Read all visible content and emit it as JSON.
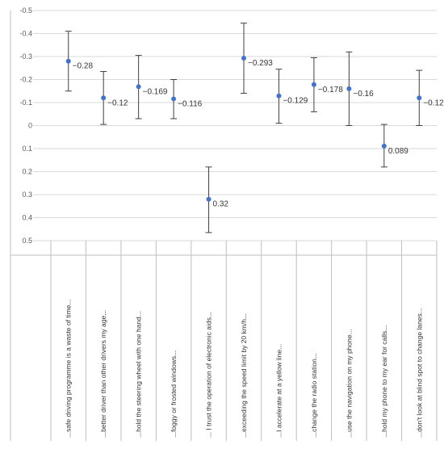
{
  "chart_data": {
    "type": "scatter",
    "y_reversed": true,
    "ylim": [
      -0.5,
      0.5
    ],
    "y_ticks": [
      {
        "value": -0.5,
        "label": "-0.5"
      },
      {
        "value": -0.4,
        "label": "-0.4"
      },
      {
        "value": -0.3,
        "label": "-0.3"
      },
      {
        "value": -0.2,
        "label": "-0.2"
      },
      {
        "value": -0.1,
        "label": "-0.1"
      },
      {
        "value": 0,
        "label": "0"
      },
      {
        "value": 0.1,
        "label": "0.1"
      },
      {
        "value": 0.2,
        "label": "0.2"
      },
      {
        "value": 0.3,
        "label": "0.3"
      },
      {
        "value": 0.4,
        "label": "0.4"
      },
      {
        "value": 0.5,
        "label": "0.5"
      }
    ],
    "categories": [
      "...safe driving programme is a waste of time...",
      "...better driver than other drivers my age...",
      "...hold the steering wheel with one hand...",
      "...foggy or frosted windows...",
      "... I trust the operation of electronic aids...",
      "...exceeding the speed limit by 20 km/h...",
      "...I accelerate at a yellow line...",
      "...change the radio station...",
      "...use the navigation on my phone...",
      "...hold my phone to my ear for calls...",
      "...don't look at blind spot to change lanes..."
    ],
    "values": [
      -0.28,
      -0.12,
      -0.169,
      -0.116,
      0.32,
      -0.293,
      -0.129,
      -0.178,
      -0.16,
      0.089,
      -0.12
    ],
    "value_labels": [
      "-0.28",
      "-0.12",
      "-0.169",
      "-0.116",
      "0.32",
      "-0.293",
      "-0.129",
      "-0.178",
      "-0.16",
      "0.089",
      "-0.12"
    ],
    "error_low": [
      -0.41,
      -0.235,
      -0.305,
      -0.2,
      0.18,
      -0.445,
      -0.245,
      -0.295,
      -0.32,
      -0.005,
      -0.24
    ],
    "error_high": [
      -0.15,
      -0.005,
      -0.03,
      -0.03,
      0.465,
      -0.14,
      -0.01,
      -0.06,
      0.0,
      0.18,
      0.0
    ],
    "colors": {
      "marker": "#4472c4",
      "error_bar": "#404040",
      "grid": "#d9d9d9"
    }
  }
}
